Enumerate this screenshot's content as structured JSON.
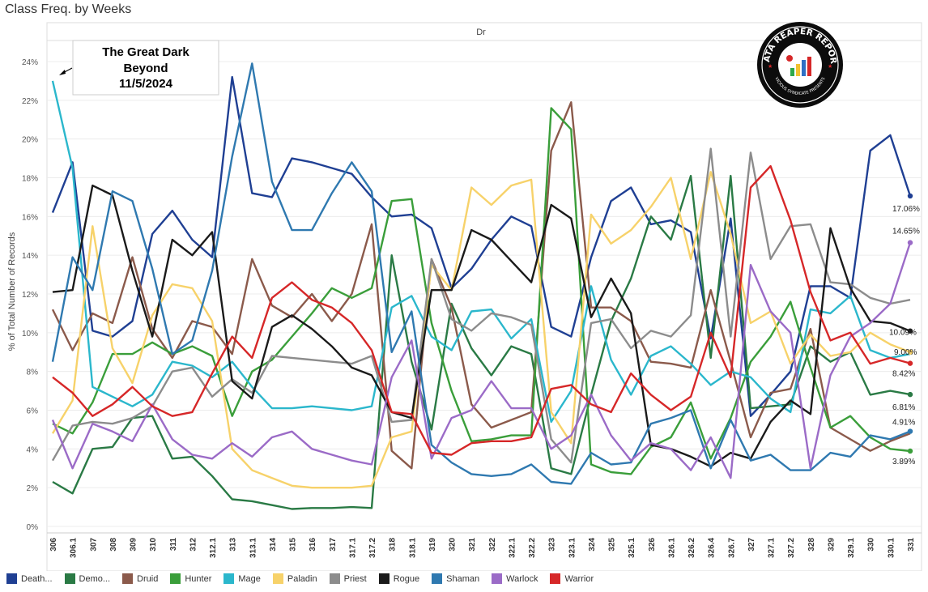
{
  "header": {
    "title": "Class Freq. by Weeks"
  },
  "annotation": {
    "line1": "The Great Dark",
    "line2": "Beyond",
    "line3": "11/5/2024"
  },
  "logo": {
    "line1": "DATA REAPER REPORT",
    "line2": "VICIOUS SYNDICATE PRESENTS"
  },
  "chart_data": {
    "type": "line",
    "panel_header": "Dr",
    "ylabel": "% of Total Number of Records",
    "ylim": [
      0,
      25
    ],
    "yticks": [
      0,
      2,
      4,
      6,
      8,
      10,
      12,
      14,
      16,
      18,
      20,
      22,
      24
    ],
    "ytick_labels": [
      "0%",
      "2%",
      "4%",
      "6%",
      "8%",
      "10%",
      "12%",
      "14%",
      "16%",
      "18%",
      "20%",
      "22%",
      "24%"
    ],
    "categories": [
      "306",
      "306.1",
      "307",
      "308",
      "309",
      "310",
      "311",
      "312",
      "312.1",
      "313",
      "313.1",
      "314",
      "315",
      "316",
      "317",
      "317.1",
      "317.2",
      "318",
      "318.1",
      "319",
      "320",
      "321",
      "322",
      "322.1",
      "322.2",
      "323",
      "323.1",
      "324",
      "325",
      "325.1",
      "326",
      "326.1",
      "326.2",
      "326.4",
      "326.7",
      "327",
      "327.1",
      "327.2",
      "328",
      "329",
      "329.1",
      "330",
      "330.1",
      "331"
    ],
    "grid": "horizontal",
    "legend_position": "bottom",
    "series": [
      {
        "name": "Death...",
        "color": "#1f3f93",
        "end_label": "17.06%",
        "values": [
          16.2,
          18.8,
          10.1,
          9.8,
          10.6,
          15.1,
          16.3,
          14.8,
          13.9,
          23.2,
          17.2,
          17.0,
          19.0,
          18.8,
          18.5,
          18.2,
          17.0,
          16.0,
          16.1,
          15.4,
          12.3,
          13.3,
          14.8,
          16.0,
          15.5,
          10.3,
          9.8,
          13.9,
          16.8,
          17.5,
          15.6,
          15.8,
          15.2,
          9.7,
          15.9,
          5.7,
          6.8,
          8.0,
          12.4,
          12.4,
          11.8,
          19.4,
          20.2,
          17.06
        ]
      },
      {
        "name": "Demo...",
        "color": "#2a7a45",
        "end_label": "6.81%",
        "values": [
          2.3,
          1.7,
          4.0,
          4.1,
          5.6,
          5.7,
          3.5,
          3.6,
          2.6,
          1.4,
          1.3,
          1.1,
          0.9,
          0.95,
          0.95,
          1.0,
          0.95,
          14.0,
          8.5,
          5.0,
          11.5,
          9.2,
          7.8,
          9.3,
          8.9,
          3.0,
          2.7,
          6.8,
          10.6,
          12.8,
          16.0,
          14.8,
          18.1,
          8.7,
          18.1,
          6.1,
          6.2,
          6.3,
          9.3,
          8.5,
          9.0,
          6.8,
          7.0,
          6.81
        ]
      },
      {
        "name": "Druid",
        "color": "#8b5a4b",
        "end_label": "",
        "values": [
          11.2,
          9.1,
          11.0,
          10.5,
          13.9,
          10.2,
          8.7,
          10.6,
          10.3,
          8.9,
          13.8,
          11.4,
          10.8,
          12.0,
          10.6,
          12.0,
          15.6,
          3.9,
          3.0,
          13.8,
          11.3,
          6.3,
          5.1,
          5.5,
          5.9,
          19.4,
          21.9,
          11.3,
          11.3,
          10.6,
          8.5,
          8.4,
          8.2,
          12.2,
          8.5,
          4.6,
          6.9,
          7.1,
          10.2,
          5.1,
          4.5,
          3.9,
          4.4,
          4.8
        ]
      },
      {
        "name": "Hunter",
        "color": "#3a9e3a",
        "end_label": "3.89%",
        "values": [
          5.3,
          4.8,
          6.4,
          8.9,
          8.9,
          9.5,
          8.9,
          9.3,
          8.8,
          5.7,
          8.0,
          8.6,
          9.8,
          11.0,
          12.3,
          11.8,
          12.3,
          16.8,
          16.9,
          10.5,
          7.0,
          4.4,
          4.5,
          4.7,
          4.7,
          21.6,
          20.5,
          3.2,
          2.8,
          2.7,
          4.1,
          4.6,
          6.4,
          3.5,
          5.6,
          8.5,
          9.8,
          11.6,
          8.2,
          5.1,
          5.7,
          4.6,
          4.0,
          3.89
        ]
      },
      {
        "name": "Mage",
        "color": "#2bb7cc",
        "end_label": "",
        "values": [
          23.0,
          18.5,
          7.2,
          6.7,
          6.2,
          6.8,
          8.5,
          8.3,
          7.7,
          8.5,
          7.2,
          6.1,
          6.1,
          6.2,
          6.1,
          6.0,
          6.2,
          11.3,
          11.9,
          9.8,
          9.1,
          11.1,
          11.2,
          9.7,
          10.7,
          5.4,
          7.0,
          12.4,
          8.6,
          6.8,
          8.8,
          9.3,
          8.4,
          7.3,
          8.0,
          7.7,
          6.6,
          5.9,
          11.2,
          11.0,
          11.9,
          9.1,
          8.7,
          8.9
        ]
      },
      {
        "name": "Paladin",
        "color": "#f7d26a",
        "end_label": "9.00%",
        "values": [
          4.8,
          6.5,
          15.5,
          9.2,
          7.4,
          10.9,
          12.5,
          12.3,
          10.6,
          4.0,
          2.9,
          2.5,
          2.1,
          2.0,
          2.0,
          2.0,
          2.1,
          4.6,
          4.9,
          13.5,
          12.2,
          17.5,
          16.6,
          17.6,
          17.9,
          5.9,
          4.3,
          16.1,
          14.6,
          15.3,
          16.5,
          18.0,
          13.8,
          18.3,
          15.1,
          10.5,
          11.1,
          8.4,
          9.9,
          8.8,
          9.0,
          10.0,
          9.4,
          9.0
        ]
      },
      {
        "name": "Priest",
        "color": "#8c8c8c",
        "end_label": "",
        "values": [
          3.4,
          5.2,
          5.4,
          5.3,
          5.6,
          6.2,
          8.0,
          8.2,
          6.7,
          7.6,
          6.9,
          8.8,
          8.7,
          8.6,
          8.5,
          8.4,
          8.8,
          5.4,
          5.5,
          13.8,
          10.7,
          10.1,
          11.0,
          10.8,
          10.4,
          4.5,
          3.3,
          10.5,
          10.7,
          9.2,
          10.1,
          9.8,
          10.9,
          19.5,
          9.8,
          19.3,
          13.8,
          15.5,
          15.6,
          12.6,
          12.5,
          11.8,
          11.5,
          11.7
        ]
      },
      {
        "name": "Rogue",
        "color": "#1a1a1a",
        "end_label": "10.09%",
        "values": [
          12.1,
          12.2,
          17.6,
          17.1,
          13.2,
          9.8,
          14.8,
          14.0,
          15.2,
          7.5,
          6.6,
          10.3,
          10.9,
          10.2,
          9.3,
          8.2,
          7.8,
          5.9,
          5.6,
          12.2,
          12.2,
          15.3,
          14.8,
          13.7,
          12.6,
          16.6,
          15.9,
          10.8,
          12.8,
          11.0,
          4.2,
          4.0,
          3.6,
          3.1,
          3.8,
          3.5,
          5.4,
          6.5,
          5.8,
          15.4,
          12.3,
          10.6,
          10.5,
          10.09
        ]
      },
      {
        "name": "Shaman",
        "color": "#2f79b0",
        "end_label": "4.91%",
        "values": [
          8.5,
          13.9,
          12.2,
          17.3,
          16.8,
          13.3,
          8.9,
          9.6,
          13.2,
          19.1,
          23.9,
          17.8,
          15.3,
          15.3,
          17.2,
          18.8,
          17.3,
          9.0,
          11.1,
          4.2,
          3.3,
          2.7,
          2.6,
          2.7,
          3.2,
          2.3,
          2.2,
          3.8,
          3.2,
          3.3,
          5.3,
          5.6,
          6.0,
          3.0,
          5.5,
          3.4,
          3.7,
          2.9,
          2.9,
          3.8,
          3.6,
          4.7,
          4.5,
          4.91
        ]
      },
      {
        "name": "Warlock",
        "color": "#9b6bc7",
        "end_label": "14.65%",
        "values": [
          5.5,
          3.0,
          5.3,
          4.9,
          4.4,
          6.3,
          4.5,
          3.7,
          3.5,
          4.3,
          3.6,
          4.6,
          4.9,
          4.0,
          3.7,
          3.4,
          3.2,
          7.7,
          9.6,
          3.5,
          5.6,
          6.0,
          7.5,
          6.1,
          6.1,
          4.0,
          4.7,
          6.8,
          4.7,
          3.4,
          4.3,
          4.0,
          2.9,
          4.6,
          2.5,
          13.5,
          11.1,
          10.0,
          3.0,
          7.8,
          9.8,
          10.5,
          11.5,
          14.65
        ]
      },
      {
        "name": "Warrior",
        "color": "#d62728",
        "end_label": "8.42%",
        "values": [
          7.7,
          6.9,
          5.7,
          6.3,
          7.2,
          6.2,
          5.7,
          5.9,
          7.9,
          9.8,
          8.7,
          11.8,
          12.6,
          11.7,
          11.3,
          10.5,
          9.1,
          5.9,
          5.8,
          3.8,
          3.7,
          4.3,
          4.4,
          4.4,
          4.6,
          7.1,
          7.3,
          6.3,
          5.9,
          7.9,
          6.8,
          6.0,
          6.7,
          10.0,
          7.7,
          17.5,
          18.6,
          15.8,
          12.1,
          9.6,
          10.0,
          8.4,
          8.7,
          8.42
        ]
      }
    ]
  }
}
